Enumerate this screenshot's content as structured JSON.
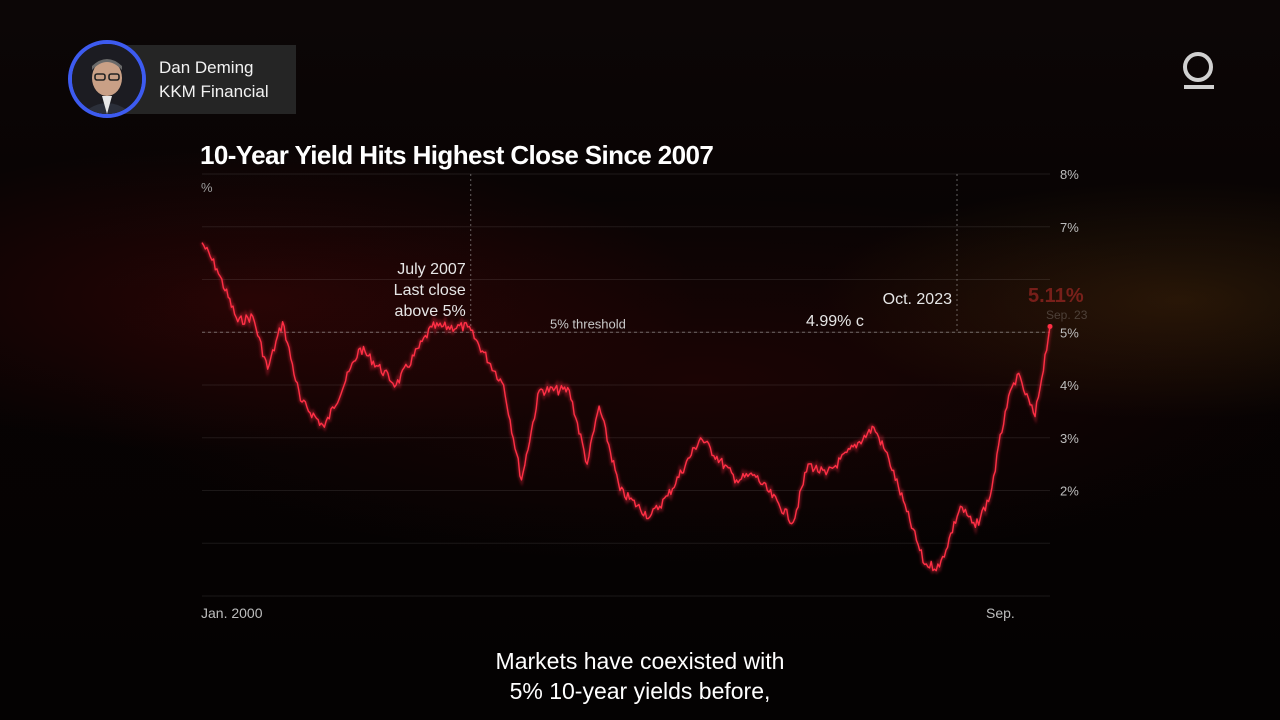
{
  "speaker": {
    "name": "Dan Deming",
    "org": "KKM Financial"
  },
  "brand_icon": "quicktake-logo-icon",
  "subtitle": {
    "line1": "Markets have coexisted with",
    "line2": "5% 10-year yields before,"
  },
  "colors": {
    "series": "#ff2f45",
    "accent_ring": "#3d5bf0",
    "highlight": "#e23333"
  },
  "chart_data": {
    "type": "line",
    "title": "10-Year Yield Hits Highest Close Since 2007",
    "ylabel": "%",
    "ylim": [
      0,
      8
    ],
    "yticks": [
      2,
      3,
      4,
      5,
      6,
      7,
      8
    ],
    "ytick_labels": [
      "2%",
      "3%",
      "4%",
      "5%",
      "",
      "7%",
      "8%"
    ],
    "x_start_label": "Jan. 2000",
    "x_end_label": "Sep.",
    "grid": true,
    "series": [
      {
        "x": [
          "2000-01",
          "2000-06",
          "2001-01",
          "2001-06",
          "2001-11",
          "2002-04",
          "2002-10",
          "2003-06",
          "2004-06",
          "2005-06",
          "2006-06",
          "2007-06",
          "2008-06",
          "2008-12",
          "2009-06",
          "2010-04",
          "2010-10",
          "2011-02",
          "2011-09",
          "2012-07",
          "2013-01",
          "2013-12",
          "2014-12",
          "2015-06",
          "2016-07",
          "2016-12",
          "2017-06",
          "2018-10",
          "2019-03",
          "2019-09",
          "2020-03",
          "2020-08",
          "2021-03",
          "2021-08",
          "2022-01",
          "2022-06",
          "2022-10",
          "2023-04",
          "2023-09"
        ],
        "y": [
          6.7,
          6.2,
          5.2,
          5.3,
          4.3,
          5.2,
          3.7,
          3.2,
          4.7,
          4.0,
          5.1,
          5.1,
          4.0,
          2.2,
          3.9,
          3.9,
          2.5,
          3.6,
          2.0,
          1.5,
          1.9,
          3.0,
          2.2,
          2.3,
          1.4,
          2.5,
          2.3,
          3.2,
          2.6,
          1.6,
          0.6,
          0.55,
          1.7,
          1.3,
          1.9,
          3.5,
          4.2,
          3.4,
          5.11
        ]
      }
    ],
    "annotations": [
      {
        "text_lines": [
          "July 2007",
          "Last close",
          "above 5%"
        ],
        "x": "2007-07",
        "y": 5.0
      },
      {
        "text": "5% threshold",
        "y": 5.0
      },
      {
        "text_lines": [
          "Oct. 2023"
        ],
        "x": "2023-10",
        "y": 5.0
      },
      {
        "text": "4.99% c",
        "y": 4.99
      },
      {
        "text": "5.11%",
        "sub": "Sep. 23",
        "y": 5.11
      }
    ]
  }
}
